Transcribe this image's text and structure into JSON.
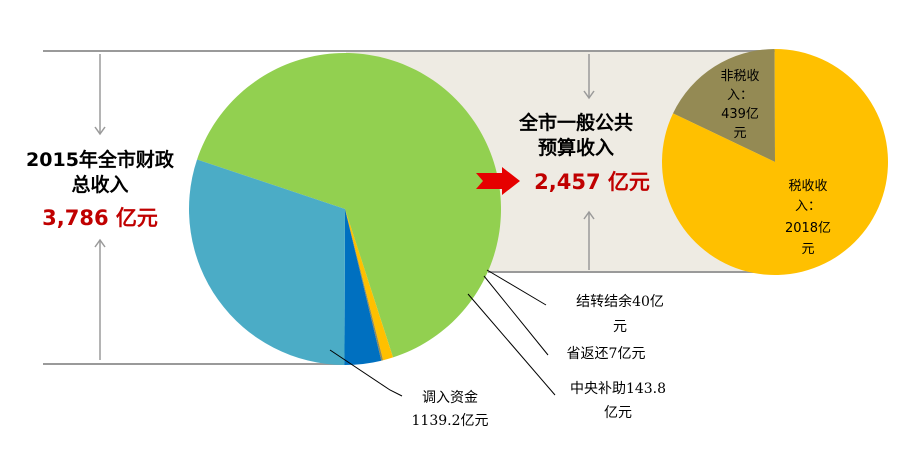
{
  "colors": {
    "total_text": "#000000",
    "total_value": "#c00000",
    "band": "#eeebe3",
    "guide_line": "#9a9a9a",
    "arrow_red": "#e60000",
    "green": "#92d050",
    "light_blue": "#4bacc6",
    "dark_blue": "#0070c0",
    "gold": "#ffc000",
    "olive": "#948a54"
  },
  "left_panel": {
    "title_line1": "2015年全市财政",
    "title_line2": "总收入",
    "value": "3,786 亿元"
  },
  "middle_panel": {
    "title_line1": "全市一般公共",
    "title_line2": "预算收入",
    "value": "2,457 亿元"
  },
  "chart_data": [
    {
      "type": "pie",
      "title": "2015年全市财政总收入",
      "total": "3,786 亿元",
      "slices": [
        {
          "name": "全市一般公共预算收入",
          "value": 2457,
          "color": "#92d050"
        },
        {
          "name": "结转结余",
          "value": 40,
          "color": "#ffc000",
          "label_lines": [
            "结转结余40亿",
            "元"
          ]
        },
        {
          "name": "省返还",
          "value": 7,
          "color": "#948a54",
          "label_lines": [
            "省返还7亿元"
          ]
        },
        {
          "name": "中央补助",
          "value": 143.8,
          "color": "#0070c0",
          "label_lines": [
            "中央补助143.8",
            "亿元"
          ]
        },
        {
          "name": "调入资金",
          "value": 1139.2,
          "color": "#4bacc6",
          "label_lines": [
            "调入资金",
            "1139.2亿元"
          ]
        }
      ]
    },
    {
      "type": "pie",
      "title": "全市一般公共预算收入",
      "total": "2,457 亿元",
      "slices": [
        {
          "name": "税收收入",
          "value": 2018,
          "color": "#ffc000",
          "label_lines": [
            "税收收",
            "入：",
            "2018亿",
            "元"
          ]
        },
        {
          "name": "非税收入",
          "value": 439,
          "color": "#948a54",
          "label_lines": [
            "非税收",
            "入：",
            "439亿",
            "元"
          ]
        }
      ]
    }
  ]
}
